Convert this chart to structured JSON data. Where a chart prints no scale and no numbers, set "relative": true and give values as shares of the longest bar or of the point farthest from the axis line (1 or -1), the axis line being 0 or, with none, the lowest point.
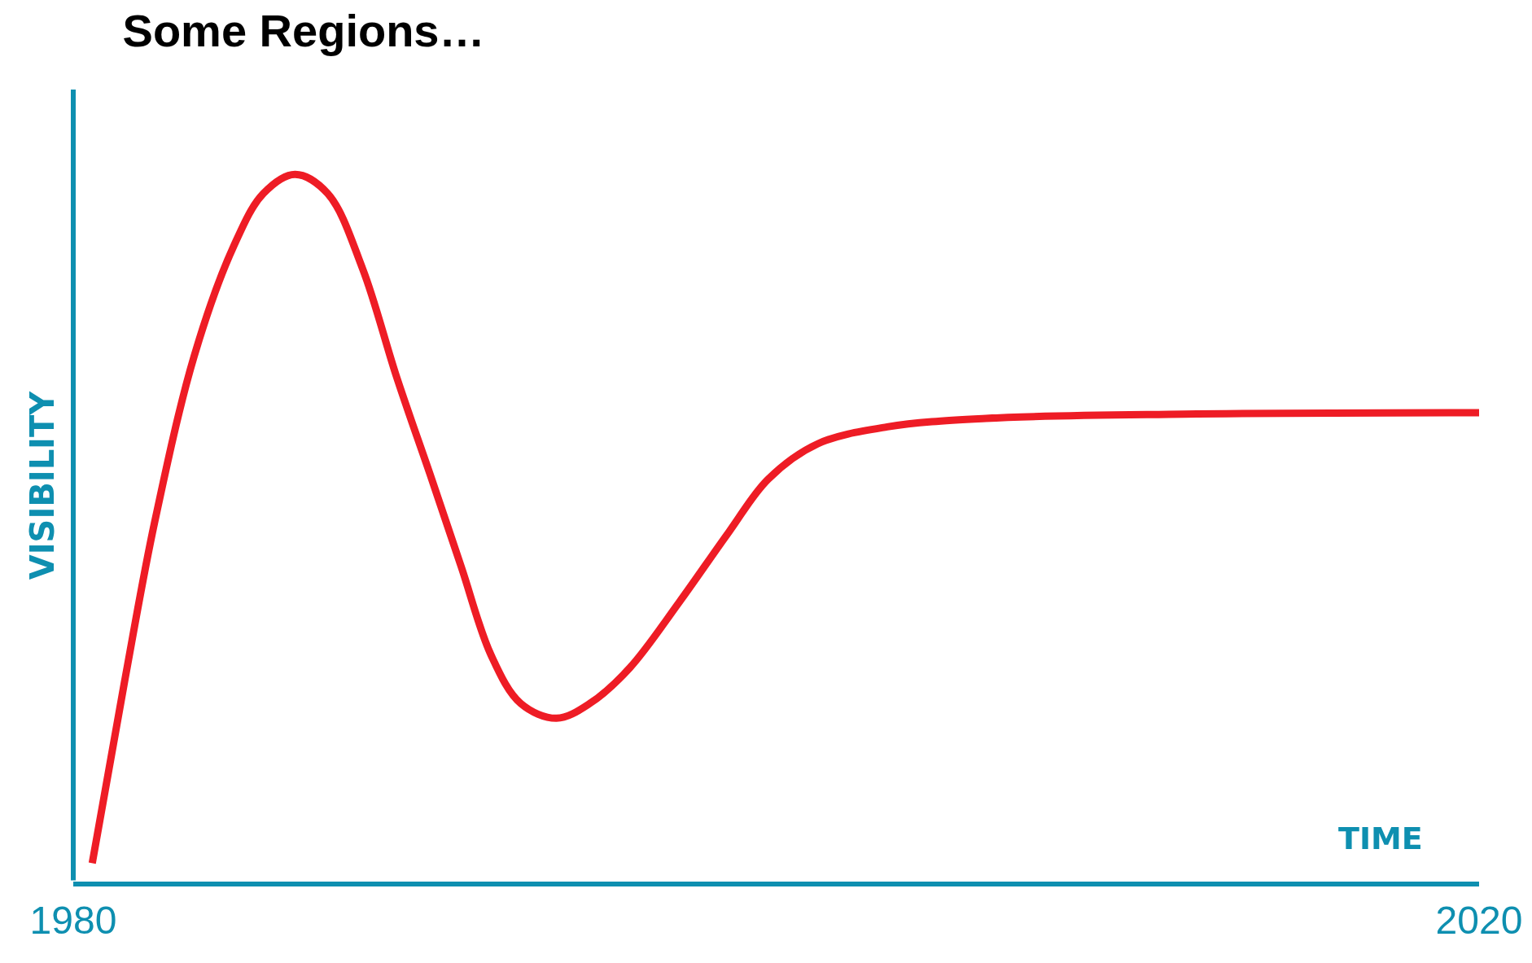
{
  "chart_data": {
    "type": "line",
    "title": "Some Regions…",
    "xlabel": "TIME",
    "ylabel": "VISIBILITY",
    "relative": true,
    "x": [
      1980.54,
      1981.46,
      1982.31,
      1983.44,
      1984.56,
      1985.41,
      1986.31,
      1987.24,
      1988.23,
      1989.21,
      1990.2,
      1991.04,
      1991.89,
      1992.73,
      1993.75,
      1994.7,
      1995.83,
      1997.24,
      1998.65,
      1999.77,
      2001.18,
      2003.16,
      2005.97,
      2011.61,
      2020
    ],
    "series": [
      {
        "color": "#ee1c25",
        "values": [
          0.026,
          0.283,
          0.507,
          0.743,
          0.898,
          0.973,
          1.0,
          0.973,
          0.867,
          0.712,
          0.569,
          0.445,
          0.32,
          0.252,
          0.231,
          0.252,
          0.302,
          0.395,
          0.494,
          0.569,
          0.619,
          0.643,
          0.655,
          0.661,
          0.663
        ]
      }
    ],
    "xlim": [
      1980,
      2020
    ],
    "xticks": [
      1980,
      2020
    ],
    "legend": false,
    "marker": "none",
    "line_style": "solid"
  }
}
